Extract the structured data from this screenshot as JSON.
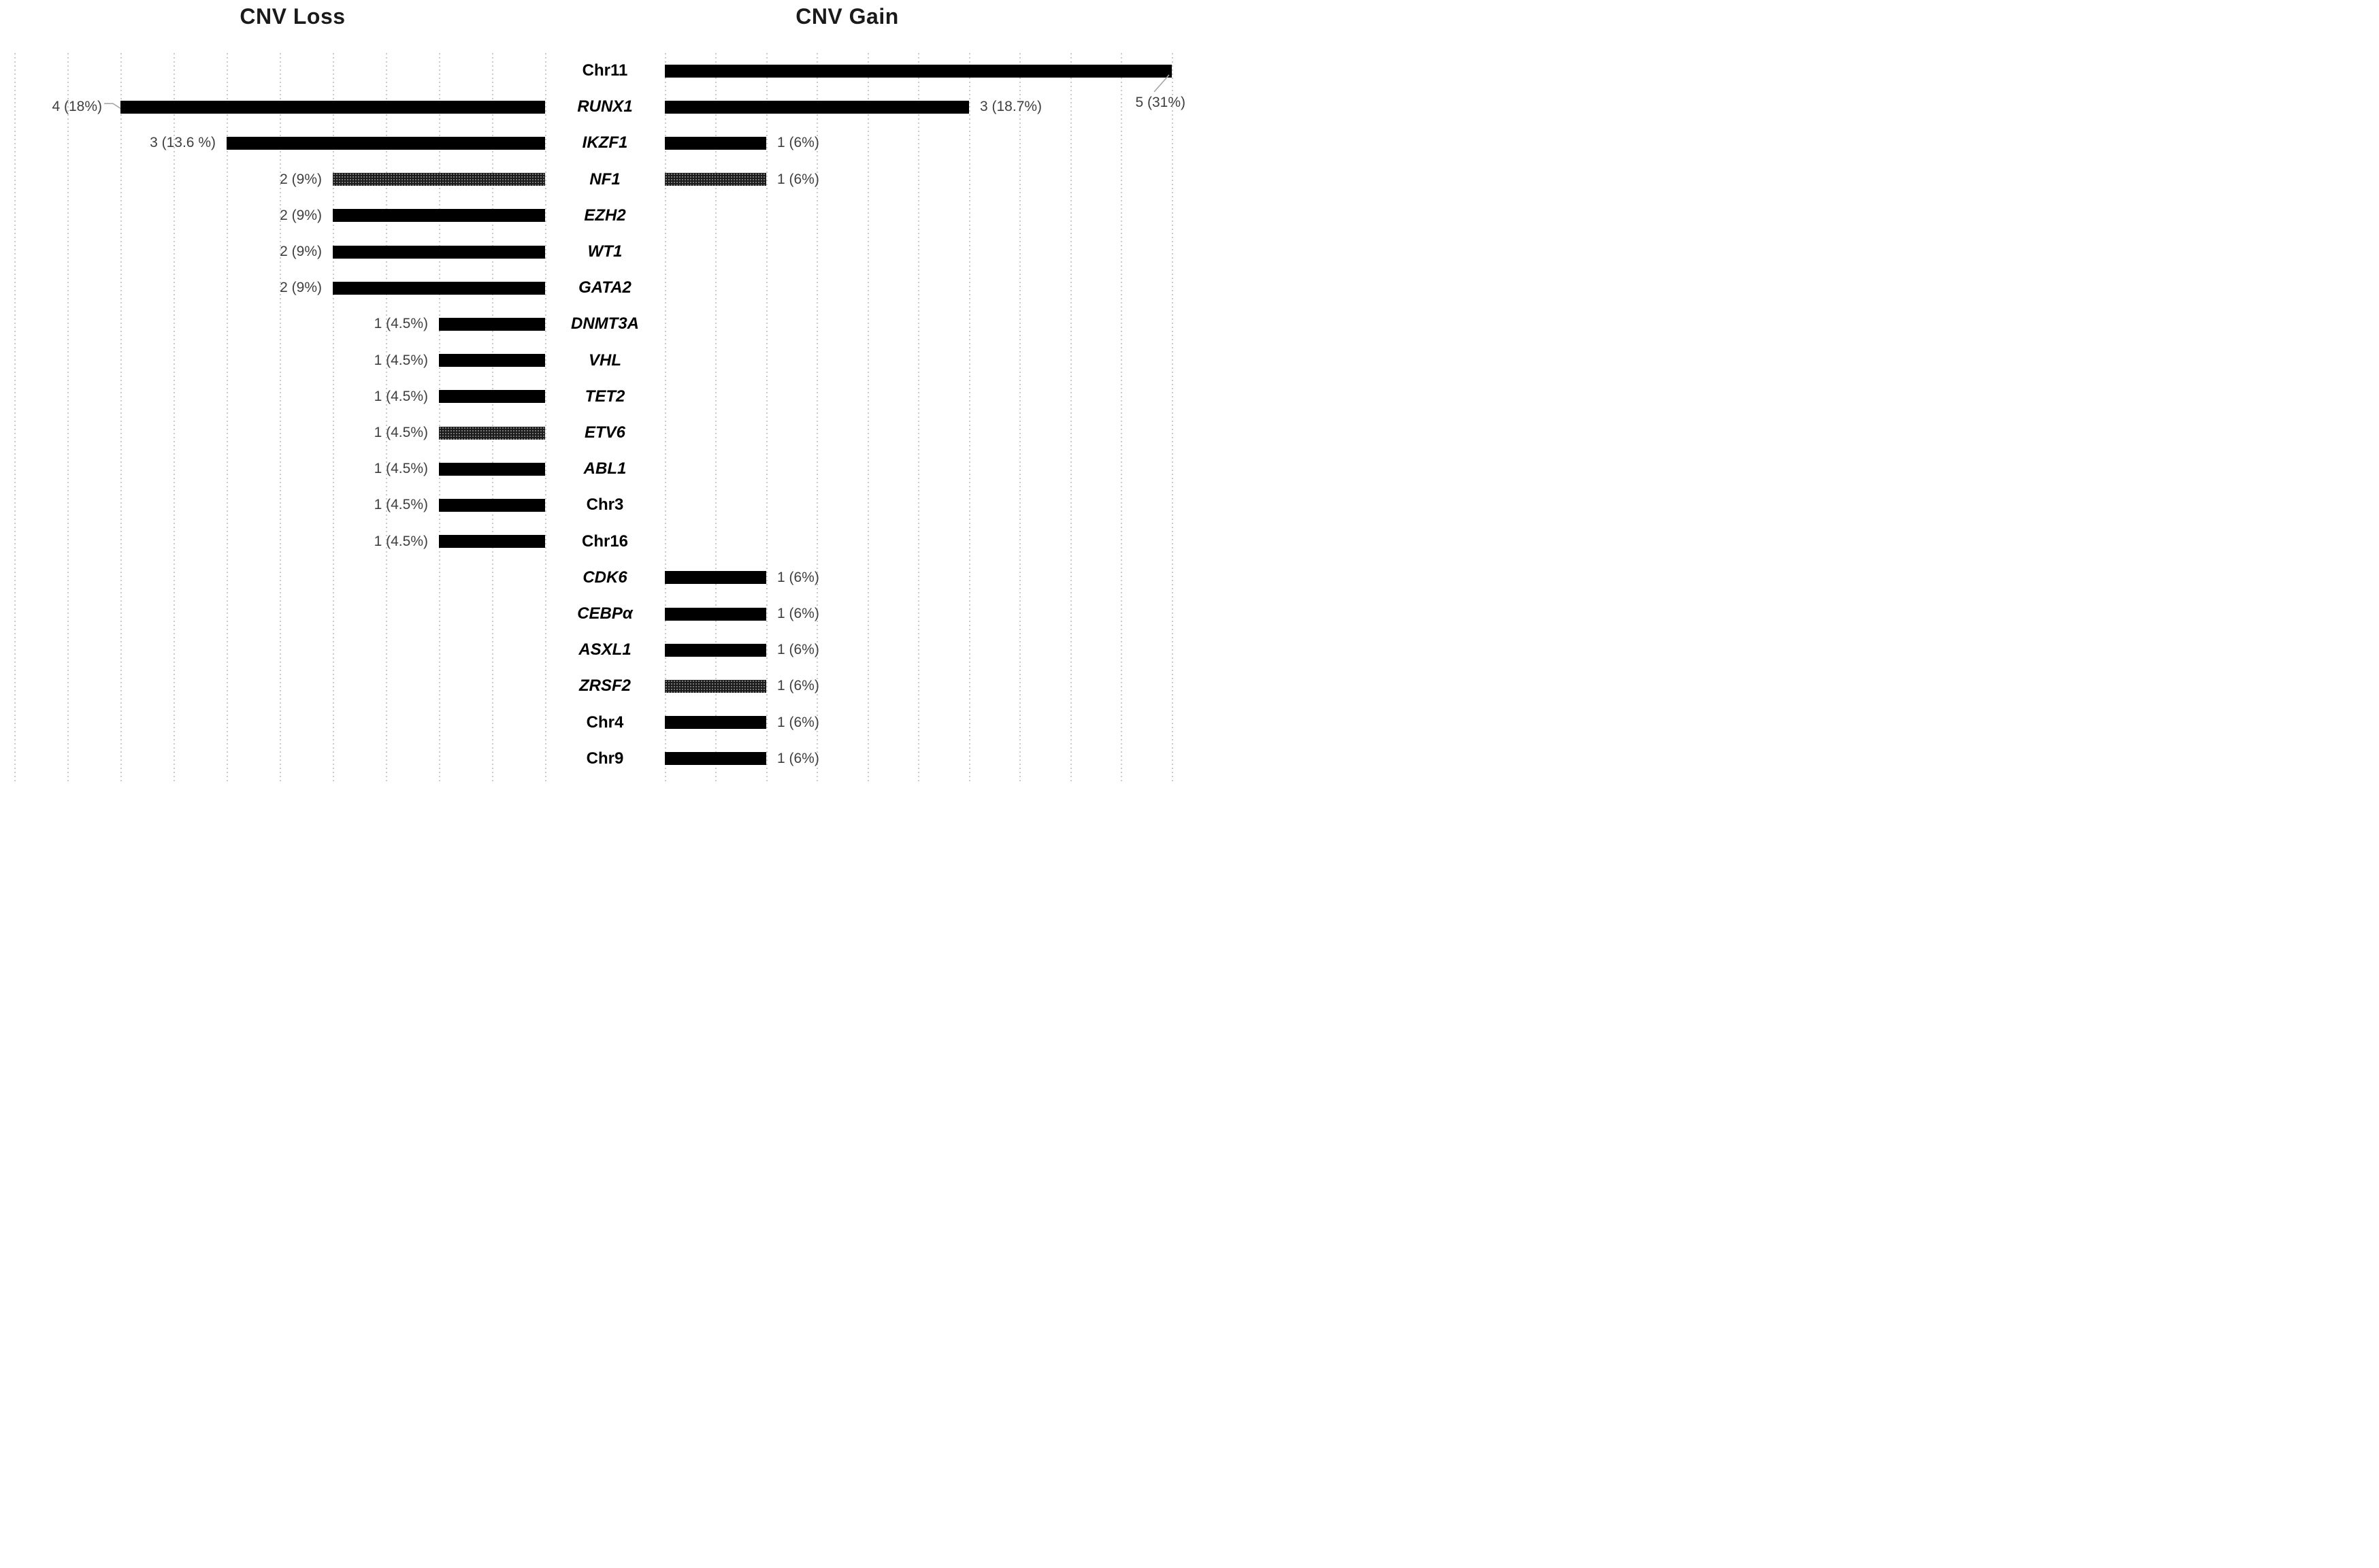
{
  "titles": {
    "left": "CNV Loss",
    "right": "CNV Gain"
  },
  "colors": {
    "bar": "#000000",
    "pattern_bar_base": "#1b1b1b",
    "pattern_dot": "#969696",
    "value_label": "#3f3f3f",
    "row_label": "#000000",
    "gridline": "#c9c9c9",
    "leader_line": "#a6a6a6",
    "background": "#ffffff"
  },
  "rows": [
    {
      "label": "Chr11",
      "italic": false,
      "loss": null,
      "gain": {
        "value": 5,
        "text": "5 (31%)",
        "pattern": false,
        "callout": true
      }
    },
    {
      "label": "RUNX1",
      "italic": true,
      "loss": {
        "value": 4,
        "text": "4 (18%)",
        "pattern": false,
        "callout": true
      },
      "gain": {
        "value": 3,
        "text": "3 (18.7%)",
        "pattern": false,
        "callout": false
      }
    },
    {
      "label": "IKZF1",
      "italic": true,
      "loss": {
        "value": 3,
        "text": "3 (13.6 %)",
        "pattern": false,
        "callout": false
      },
      "gain": {
        "value": 1,
        "text": "1 (6%)",
        "pattern": false,
        "callout": false
      }
    },
    {
      "label": "NF1",
      "italic": true,
      "loss": {
        "value": 2,
        "text": "2 (9%)",
        "pattern": true,
        "callout": false
      },
      "gain": {
        "value": 1,
        "text": "1 (6%)",
        "pattern": true,
        "callout": false
      }
    },
    {
      "label": "EZH2",
      "italic": true,
      "loss": {
        "value": 2,
        "text": "2 (9%)",
        "pattern": false,
        "callout": false
      },
      "gain": null
    },
    {
      "label": "WT1",
      "italic": true,
      "loss": {
        "value": 2,
        "text": "2 (9%)",
        "pattern": false,
        "callout": false
      },
      "gain": null
    },
    {
      "label": "GATA2",
      "italic": true,
      "loss": {
        "value": 2,
        "text": "2 (9%)",
        "pattern": false,
        "callout": false
      },
      "gain": null
    },
    {
      "label": "DNMT3A",
      "italic": true,
      "loss": {
        "value": 1,
        "text": "1 (4.5%)",
        "pattern": false,
        "callout": false
      },
      "gain": null
    },
    {
      "label": "VHL",
      "italic": true,
      "loss": {
        "value": 1,
        "text": "1 (4.5%)",
        "pattern": false,
        "callout": false
      },
      "gain": null
    },
    {
      "label": "TET2",
      "italic": true,
      "loss": {
        "value": 1,
        "text": "1 (4.5%)",
        "pattern": false,
        "callout": false
      },
      "gain": null
    },
    {
      "label": "ETV6",
      "italic": true,
      "loss": {
        "value": 1,
        "text": "1 (4.5%)",
        "pattern": true,
        "callout": false
      },
      "gain": null
    },
    {
      "label": "ABL1",
      "italic": true,
      "loss": {
        "value": 1,
        "text": "1 (4.5%)",
        "pattern": false,
        "callout": false
      },
      "gain": null
    },
    {
      "label": "Chr3",
      "italic": false,
      "loss": {
        "value": 1,
        "text": "1 (4.5%)",
        "pattern": false,
        "callout": false
      },
      "gain": null
    },
    {
      "label": "Chr16",
      "italic": false,
      "loss": {
        "value": 1,
        "text": "1 (4.5%)",
        "pattern": false,
        "callout": false
      },
      "gain": null
    },
    {
      "label": "CDK6",
      "italic": true,
      "loss": null,
      "gain": {
        "value": 1,
        "text": "1 (6%)",
        "pattern": false,
        "callout": false
      }
    },
    {
      "label": "CEBPα",
      "italic": true,
      "loss": null,
      "gain": {
        "value": 1,
        "text": "1 (6%)",
        "pattern": false,
        "callout": false
      }
    },
    {
      "label": "ASXL1",
      "italic": true,
      "loss": null,
      "gain": {
        "value": 1,
        "text": "1 (6%)",
        "pattern": false,
        "callout": false
      }
    },
    {
      "label": "ZRSF2",
      "italic": true,
      "loss": null,
      "gain": {
        "value": 1,
        "text": "1 (6%)",
        "pattern": true,
        "callout": false
      }
    },
    {
      "label": "Chr4",
      "italic": false,
      "loss": null,
      "gain": {
        "value": 1,
        "text": "1 (6%)",
        "pattern": false,
        "callout": false
      }
    },
    {
      "label": "Chr9",
      "italic": false,
      "loss": null,
      "gain": {
        "value": 1,
        "text": "1 (6%)",
        "pattern": false,
        "callout": false
      }
    }
  ],
  "chart_data": [
    {
      "type": "bar",
      "orientation": "horizontal",
      "direction": "right-to-left",
      "title": "CNV Loss",
      "categories": [
        "RUNX1",
        "IKZF1",
        "NF1",
        "EZH2",
        "WT1",
        "GATA2",
        "DNMT3A",
        "VHL",
        "TET2",
        "ETV6",
        "ABL1",
        "Chr3",
        "Chr16"
      ],
      "values": [
        4,
        3,
        2,
        2,
        2,
        2,
        1,
        1,
        1,
        1,
        1,
        1,
        1
      ],
      "data_labels": [
        "4 (18%)",
        "3 (13.6 %)",
        "2 (9%)",
        "2 (9%)",
        "2 (9%)",
        "2 (9%)",
        "1 (4.5%)",
        "1 (4.5%)",
        "1 (4.5%)",
        "1 (4.5%)",
        "1 (4.5%)",
        "1 (4.5%)",
        "1 (4.5%)"
      ],
      "pattern_fill_bars": [
        "NF1",
        "ETV6"
      ],
      "xlabel": "",
      "ylabel": "",
      "xlim": [
        0,
        5
      ],
      "grid": "vertical dotted gridlines every 0.5 units",
      "legend": "none",
      "bar_color": "#000000"
    },
    {
      "type": "bar",
      "orientation": "horizontal",
      "direction": "left-to-right",
      "title": "CNV Gain",
      "categories": [
        "Chr11",
        "RUNX1",
        "IKZF1",
        "NF1",
        "CDK6",
        "CEBPα",
        "ASXL1",
        "ZRSF2",
        "Chr4",
        "Chr9"
      ],
      "values": [
        5,
        3,
        1,
        1,
        1,
        1,
        1,
        1,
        1,
        1
      ],
      "data_labels": [
        "5 (31%)",
        "3 (18.7%)",
        "1 (6%)",
        "1 (6%)",
        "1 (6%)",
        "1 (6%)",
        "1 (6%)",
        "1 (6%)",
        "1 (6%)",
        "1 (6%)"
      ],
      "pattern_fill_bars": [
        "NF1",
        "ZRSF2"
      ],
      "xlabel": "",
      "ylabel": "",
      "xlim": [
        0,
        5
      ],
      "grid": "vertical dotted gridlines every 0.5 units",
      "legend": "none",
      "bar_color": "#000000"
    }
  ]
}
